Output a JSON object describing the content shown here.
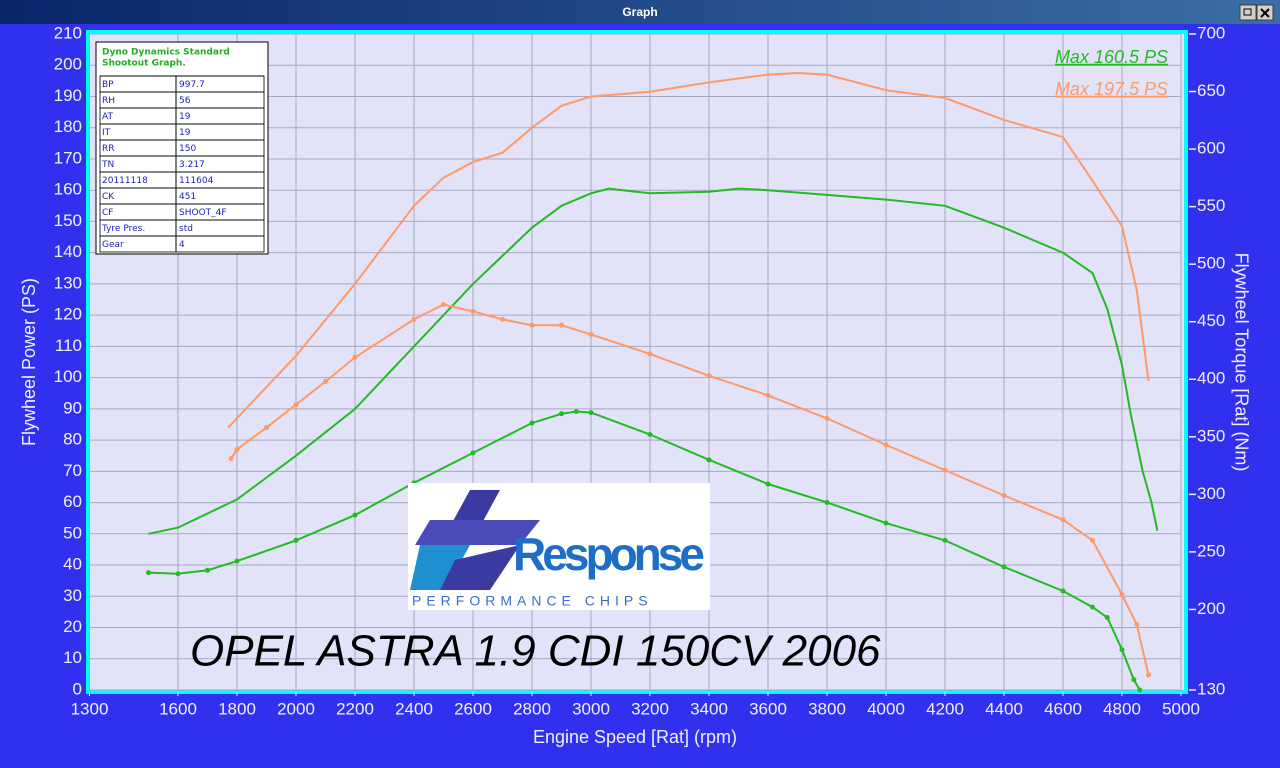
{
  "window_title": "Graph",
  "info_table": {
    "title": "Dyno Dynamics Standard Shootout Graph.",
    "rows": [
      [
        "BP",
        "997.7"
      ],
      [
        "RH",
        "56"
      ],
      [
        "AT",
        "19"
      ],
      [
        "IT",
        "19"
      ],
      [
        "RR",
        "150"
      ],
      [
        "TN",
        "3.217"
      ],
      [
        "20111118",
        "111604"
      ],
      [
        "CK",
        "451"
      ],
      [
        "CF",
        "SHOOT_4F"
      ],
      [
        "Tyre Pres.",
        "std"
      ],
      [
        "Gear",
        "4"
      ]
    ]
  },
  "logo": {
    "name": "Response",
    "tagline": "PERFORMANCE CHIPS"
  },
  "chart_data": {
    "type": "line",
    "annotation": "OPEL ASTRA 1.9 CDI 150CV 2006",
    "xlabel": "Engine Speed [Rat] (rpm)",
    "ylabel": "Flywheel Power (PS)",
    "y2label": "Flywheel Torque [Rat] (Nm)",
    "xlim": [
      1300,
      5000
    ],
    "xticks": [
      1300,
      1600,
      1800,
      2000,
      2200,
      2400,
      2600,
      2800,
      3000,
      3200,
      3400,
      3600,
      3800,
      4000,
      4200,
      4400,
      4600,
      4800,
      5000
    ],
    "ylim": [
      0,
      210
    ],
    "yticks": [
      0,
      10,
      20,
      30,
      40,
      50,
      60,
      70,
      80,
      90,
      100,
      110,
      120,
      130,
      140,
      150,
      160,
      170,
      180,
      190,
      200,
      210
    ],
    "y2lim": [
      130,
      700
    ],
    "y2ticks": [
      130,
      200,
      250,
      300,
      350,
      400,
      450,
      500,
      550,
      600,
      650,
      700
    ],
    "grid": true,
    "legend": "top right",
    "series": [
      {
        "name": "Max 160.5 PS",
        "color": "#22bb22",
        "x": [
          1500,
          1600,
          1800,
          2000,
          2200,
          2400,
          2600,
          2800,
          2900,
          3000,
          3060,
          3200,
          3400,
          3500,
          3600,
          3800,
          4000,
          4200,
          4400,
          4600,
          4700,
          4750,
          4800,
          4830,
          4870,
          4900,
          4920
        ],
        "values": [
          50,
          52,
          61,
          75,
          90,
          110,
          130,
          148,
          155,
          159,
          160.5,
          159,
          159.5,
          160.5,
          160,
          158.5,
          157,
          155,
          148,
          140,
          133.5,
          122,
          104,
          88,
          70,
          60,
          51
        ]
      },
      {
        "name": "Max 197.5 PS",
        "color": "#ff9966",
        "x": [
          1770,
          1800,
          2000,
          2200,
          2400,
          2500,
          2600,
          2700,
          2800,
          2900,
          3000,
          3200,
          3400,
          3600,
          3700,
          3800,
          4000,
          4200,
          4400,
          4600,
          4700,
          4800,
          4850,
          4890
        ],
        "values": [
          84,
          87,
          107,
          130,
          155,
          164,
          169,
          172,
          180,
          187,
          190,
          191.5,
          194.5,
          197,
          197.5,
          197,
          192,
          189.5,
          182.5,
          177,
          163,
          148.5,
          128,
          99
        ]
      },
      {
        "color": "#22bb22",
        "axis": "y2",
        "markers": true,
        "x": [
          1500,
          1600,
          1700,
          1800,
          2000,
          2200,
          2400,
          2600,
          2800,
          2900,
          2950,
          3000,
          3200,
          3400,
          3600,
          3800,
          4000,
          4200,
          4400,
          4600,
          4700,
          4750,
          4800,
          4840,
          4860
        ],
        "values": [
          232,
          231,
          234,
          242,
          260,
          282,
          310,
          336,
          362,
          370,
          372,
          371,
          352,
          330,
          309,
          293,
          275,
          260,
          237,
          216,
          202,
          193,
          165,
          139,
          130
        ]
      },
      {
        "color": "#ff9966",
        "axis": "y2",
        "markers": true,
        "x": [
          1780,
          1800,
          1900,
          2000,
          2100,
          2200,
          2400,
          2500,
          2600,
          2700,
          2800,
          2900,
          3000,
          3200,
          3400,
          3600,
          3800,
          4000,
          4200,
          4400,
          4600,
          4700,
          4800,
          4850,
          4890
        ],
        "values": [
          331,
          339,
          358,
          378,
          398,
          419,
          452,
          465,
          459,
          452,
          447,
          447,
          439,
          422,
          403,
          386,
          366,
          343,
          321,
          299,
          278,
          260,
          213,
          187,
          143
        ]
      }
    ]
  }
}
